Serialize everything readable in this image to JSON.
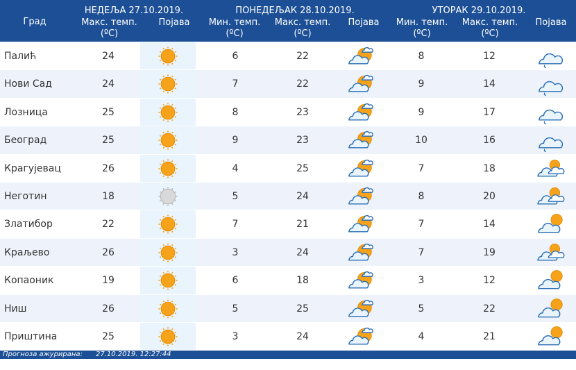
{
  "header": {
    "city_label": "Град",
    "days": [
      {
        "date": "НЕДЕЉА  27.10.2019.",
        "max_label": "Макс. темп.",
        "unit_label": "(ºC)",
        "phen_label": "Појава"
      },
      {
        "date": "ПОНЕДЕЉАК  28.10.2019.",
        "min_label": "Мин. темп.",
        "max_label": "Макс. темп.",
        "unit_min": "(ºC)",
        "unit_max": "(ºC)",
        "phen_label": "Појава"
      },
      {
        "date": "УТОРАК  29.10.2019.",
        "min_label": "Мин. темп.",
        "max_label": "Макс. темп.",
        "unit_min": "(ºC)",
        "unit_max": "(ºC)",
        "phen_label": "Појава"
      }
    ]
  },
  "rows": [
    {
      "city": "Палић",
      "d1_max": "24",
      "d1_icon": "sun-icon",
      "d2_min": "6",
      "d2_max": "22",
      "d2_icon": "partly-cloudy-icon",
      "d3_min": "8",
      "d3_max": "12",
      "d3_icon": "rain-cloud-icon"
    },
    {
      "city": "Нови Сад",
      "d1_max": "24",
      "d1_icon": "sun-icon",
      "d2_min": "7",
      "d2_max": "22",
      "d2_icon": "partly-cloudy-icon",
      "d3_min": "9",
      "d3_max": "14",
      "d3_icon": "rain-cloud-icon"
    },
    {
      "city": "Лозница",
      "d1_max": "25",
      "d1_icon": "sun-icon",
      "d2_min": "8",
      "d2_max": "23",
      "d2_icon": "partly-cloudy-icon",
      "d3_min": "9",
      "d3_max": "17",
      "d3_icon": "rain-cloud-icon"
    },
    {
      "city": "Београд",
      "d1_max": "25",
      "d1_icon": "sun-icon",
      "d2_min": "9",
      "d2_max": "23",
      "d2_icon": "partly-cloudy-icon",
      "d3_min": "10",
      "d3_max": "16",
      "d3_icon": "rain-cloud-icon"
    },
    {
      "city": "Крагујевац",
      "d1_max": "26",
      "d1_icon": "sun-icon",
      "d2_min": "4",
      "d2_max": "25",
      "d2_icon": "partly-cloudy-icon",
      "d3_min": "7",
      "d3_max": "18",
      "d3_icon": "cloudy-sun-icon"
    },
    {
      "city": "Неготин",
      "d1_max": "18",
      "d1_icon": "hazy-sun-icon",
      "d2_min": "5",
      "d2_max": "24",
      "d2_icon": "partly-cloudy-icon",
      "d3_min": "8",
      "d3_max": "20",
      "d3_icon": "cloudy-sun-icon"
    },
    {
      "city": "Златибор",
      "d1_max": "22",
      "d1_icon": "sun-icon",
      "d2_min": "7",
      "d2_max": "21",
      "d2_icon": "partly-cloudy-icon",
      "d3_min": "7",
      "d3_max": "14",
      "d3_icon": "cloud-sun-icon"
    },
    {
      "city": "Краљево",
      "d1_max": "26",
      "d1_icon": "sun-icon",
      "d2_min": "3",
      "d2_max": "24",
      "d2_icon": "partly-cloudy-icon",
      "d3_min": "7",
      "d3_max": "19",
      "d3_icon": "cloudy-sun-icon"
    },
    {
      "city": "Копаоник",
      "d1_max": "19",
      "d1_icon": "sun-icon",
      "d2_min": "6",
      "d2_max": "18",
      "d2_icon": "partly-cloudy-icon",
      "d3_min": "3",
      "d3_max": "12",
      "d3_icon": "cloud-sun-icon"
    },
    {
      "city": "Ниш",
      "d1_max": "26",
      "d1_icon": "sun-icon",
      "d2_min": "5",
      "d2_max": "25",
      "d2_icon": "partly-cloudy-icon",
      "d3_min": "5",
      "d3_max": "22",
      "d3_icon": "cloud-sun-icon"
    },
    {
      "city": "Приштина",
      "d1_max": "25",
      "d1_icon": "sun-icon",
      "d2_min": "3",
      "d2_max": "24",
      "d2_icon": "partly-cloudy-icon",
      "d3_min": "4",
      "d3_max": "21",
      "d3_icon": "cloud-sun-icon"
    }
  ],
  "footer": {
    "label": "Прогноза ажурирана:",
    "timestamp": "27.10.2019. 12:27:44"
  },
  "colors": {
    "header": "#1c4f95",
    "row_light": "#eef3fb",
    "row_white": "#ffffff",
    "icon_col_bg": "#e9f4fc",
    "sun": "#f7a21b",
    "cloud_outline": "#2b6fb5"
  }
}
